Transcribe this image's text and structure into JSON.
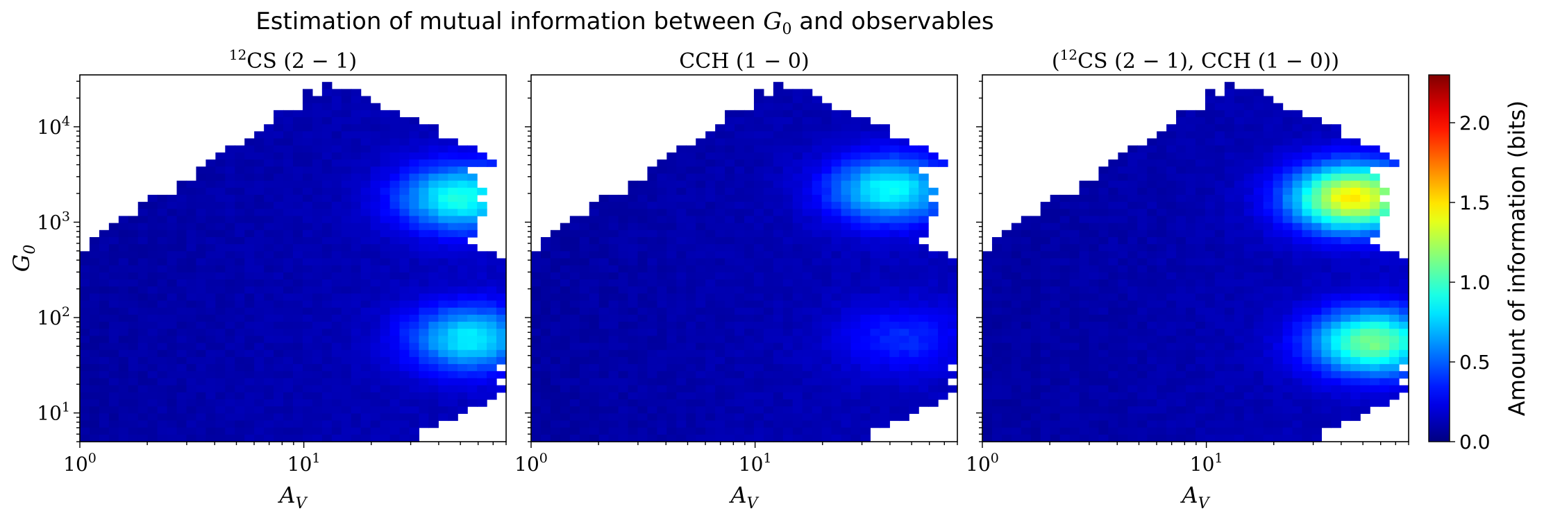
{
  "figure": {
    "title_prefix": "Estimation of mutual information between ",
    "title_math": "G",
    "title_math_sub": "0",
    "title_suffix": " and observables"
  },
  "chart_data": {
    "type": "heatmap",
    "colormap": "jet",
    "x_scale": "log",
    "y_scale": "log",
    "xlim": [
      1,
      80
    ],
    "ylim": [
      5,
      35000
    ],
    "clim": [
      0,
      2.3
    ],
    "xlabel": "A_V",
    "ylabel": "G_0",
    "x_ticks": [
      {
        "base": "10",
        "exp": "0"
      },
      {
        "base": "10",
        "exp": "1"
      }
    ],
    "y_ticks": [
      {
        "base": "10",
        "exp": "1"
      },
      {
        "base": "10",
        "exp": "2"
      },
      {
        "base": "10",
        "exp": "3"
      },
      {
        "base": "10",
        "exp": "4"
      }
    ],
    "colorbar": {
      "label": "Amount of information (bits)",
      "ticks": [
        "0.0",
        "0.5",
        "1.0",
        "1.5",
        "2.0"
      ]
    },
    "panels": [
      {
        "title_parts": [
          {
            "t": "12",
            "sup": true
          },
          {
            "t": "CS (2 − 1)"
          }
        ],
        "hotspots": [
          {
            "av": 50,
            "g0": 1800,
            "value": 0.8
          },
          {
            "av": 55,
            "g0": 60,
            "value": 0.7
          }
        ]
      },
      {
        "title_parts": [
          {
            "t": "CCH (1 − 0)"
          }
        ],
        "hotspots": [
          {
            "av": 40,
            "g0": 2200,
            "value": 0.75
          },
          {
            "av": 45,
            "g0": 60,
            "value": 0.25
          }
        ]
      },
      {
        "title_parts": [
          {
            "t": "("
          },
          {
            "t": "12",
            "sup": true
          },
          {
            "t": "CS (2 − 1), CCH (1 − 0))"
          }
        ],
        "hotspots": [
          {
            "av": 45,
            "g0": 1800,
            "value": 1.35
          },
          {
            "av": 55,
            "g0": 55,
            "value": 1.0
          }
        ]
      }
    ]
  }
}
